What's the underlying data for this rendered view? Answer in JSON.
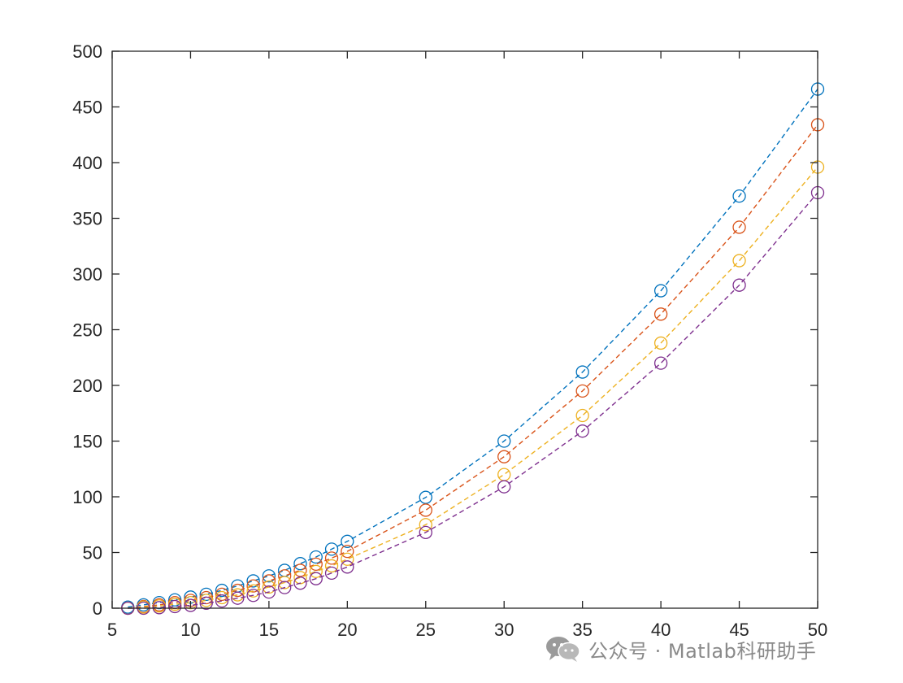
{
  "chart_data": {
    "type": "line",
    "title": "",
    "xlabel": "",
    "ylabel": "",
    "xlim": [
      5,
      50
    ],
    "ylim": [
      0,
      500
    ],
    "xticks": [
      5,
      10,
      15,
      20,
      25,
      30,
      35,
      40,
      45,
      50
    ],
    "yticks": [
      0,
      50,
      100,
      150,
      200,
      250,
      300,
      350,
      400,
      450,
      500
    ],
    "grid": false,
    "legend": "none",
    "line_style": "dashed",
    "marker": "circle",
    "x": [
      6,
      7,
      8,
      9,
      10,
      11,
      12,
      13,
      14,
      15,
      16,
      17,
      18,
      19,
      20,
      25,
      30,
      35,
      40,
      45,
      50
    ],
    "series": [
      {
        "color": "#0072BD",
        "values": [
          1,
          3,
          5,
          7.5,
          10,
          12.5,
          16,
          20,
          24.5,
          29,
          34,
          40,
          46,
          53,
          60,
          99.5,
          150,
          212,
          285,
          370,
          466
        ]
      },
      {
        "color": "#D95319",
        "values": [
          0,
          1.5,
          3,
          5,
          7,
          9.5,
          12.5,
          16,
          20,
          24.5,
          29,
          34,
          39.5,
          45,
          51,
          88,
          136,
          195,
          264,
          342,
          434
        ]
      },
      {
        "color": "#EDB120",
        "values": [
          0,
          1,
          2,
          3.5,
          5,
          7,
          9.5,
          12,
          15.5,
          19,
          23,
          27.5,
          33,
          38,
          44,
          75,
          120,
          173,
          238,
          312,
          396
        ]
      },
      {
        "color": "#7E2F8E",
        "values": [
          0,
          0,
          0.5,
          1.5,
          2.5,
          4.5,
          6.5,
          9,
          11.5,
          14.5,
          18.5,
          22.5,
          26.5,
          31.5,
          37,
          68,
          109,
          159,
          220,
          290,
          373
        ]
      }
    ]
  },
  "watermark": {
    "icon": "wechat-icon",
    "text": "公众号 · Matlab科研助手",
    "color": "#8a8a8a"
  }
}
